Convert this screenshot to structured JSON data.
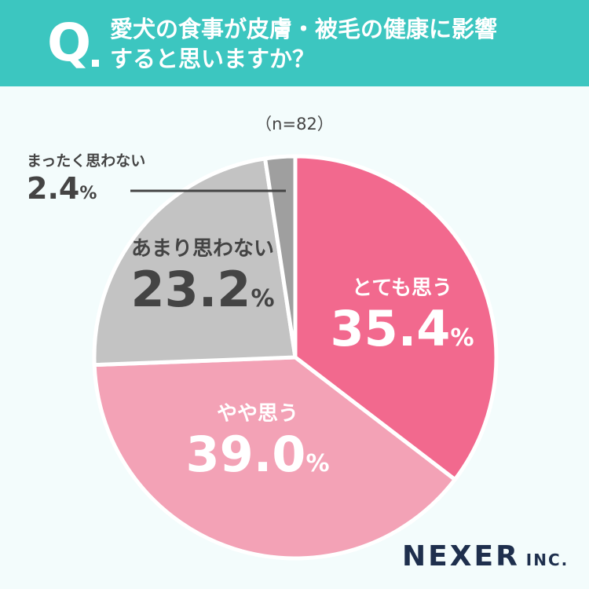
{
  "header": {
    "q_mark": "Q",
    "question_line1": "愛犬の食事が皮膚・被毛の健康に影響",
    "question_line2": "すると思いますか？"
  },
  "chart_data": {
    "type": "pie",
    "sample_label": "（n=82）",
    "percent_sign": "%",
    "slices": [
      {
        "label": "とても思う",
        "value": 35.4,
        "value_text": "35.4",
        "color": "#f2698e"
      },
      {
        "label": "やや思う",
        "value": 39.0,
        "value_text": "39.0",
        "color": "#f3a2b6"
      },
      {
        "label": "あまり思わない",
        "value": 23.2,
        "value_text": "23.2",
        "color": "#c3c3c3"
      },
      {
        "label": "まったく思わない",
        "value": 2.4,
        "value_text": "2.4",
        "color": "#9f9f9f"
      }
    ]
  },
  "logo": {
    "main": "NEXER",
    "sub": "INC."
  }
}
